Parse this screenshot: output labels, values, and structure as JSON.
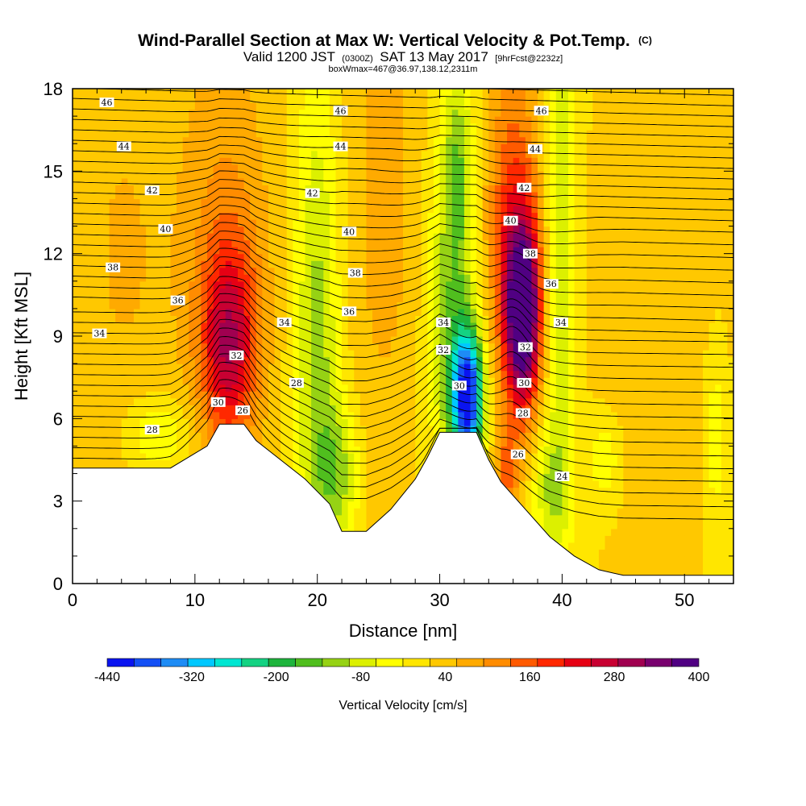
{
  "chart_data": {
    "type": "heatmap",
    "title": {
      "main": "Wind-Parallel Section at Max W: Vertical Velocity & Pot.Temp.",
      "mark": "(C)"
    },
    "subtitle": {
      "valid": "Valid 1200 JST",
      "utc": "(0300Z)",
      "date": "SAT 13 May 2017",
      "fcst": "[9hrFcst@2232z]"
    },
    "box_line": "boxWmax=467@36.97,138.12,2311m",
    "xlabel": "Distance [nm]",
    "ylabel": "Height [Kft MSL]",
    "xlim": [
      0,
      54
    ],
    "ylim": [
      0,
      18
    ],
    "x_ticks": [
      "0",
      "10",
      "20",
      "30",
      "40",
      "50"
    ],
    "y_ticks": [
      "0",
      "3",
      "6",
      "9",
      "12",
      "15",
      "18"
    ],
    "colorbar": {
      "title": "Vertical Velocity [cm/s]",
      "labels": [
        "-440",
        "-320",
        "-200",
        "-80",
        "40",
        "160",
        "280",
        "400"
      ],
      "colors": [
        "#0a14f0",
        "#1450f5",
        "#1e8cf5",
        "#00c8ff",
        "#00e6d2",
        "#14d282",
        "#1eb43c",
        "#50be1e",
        "#96d214",
        "#dcf000",
        "#ffff00",
        "#ffe600",
        "#ffc800",
        "#ffaa00",
        "#ff8c00",
        "#ff5a00",
        "#ff2800",
        "#e60014",
        "#c80032",
        "#a00050",
        "#78006e",
        "#500082"
      ]
    },
    "terrain_kft": [
      [
        0,
        4.2
      ],
      [
        8,
        4.2
      ],
      [
        11,
        5.0
      ],
      [
        12,
        5.8
      ],
      [
        14,
        5.8
      ],
      [
        15,
        5.2
      ],
      [
        17,
        4.5
      ],
      [
        19,
        3.8
      ],
      [
        21,
        2.9
      ],
      [
        22,
        1.9
      ],
      [
        24,
        1.9
      ],
      [
        26,
        2.7
      ],
      [
        28,
        3.8
      ],
      [
        29,
        4.6
      ],
      [
        30,
        5.5
      ],
      [
        33,
        5.5
      ],
      [
        34,
        4.5
      ],
      [
        35,
        3.7
      ],
      [
        37,
        2.7
      ],
      [
        39,
        1.7
      ],
      [
        41,
        1.0
      ],
      [
        43,
        0.5
      ],
      [
        45,
        0.3
      ],
      [
        54,
        0.3
      ]
    ],
    "w_features": [
      {
        "x": 12.8,
        "z": 8.7,
        "sx": 1.6,
        "sz": 2.5,
        "amp": 220
      },
      {
        "x": 12.5,
        "z": 12.5,
        "sx": 2.8,
        "sz": 6,
        "amp": 90
      },
      {
        "x": 20.0,
        "z": 8.5,
        "sx": 1.3,
        "sz": 7,
        "amp": -130
      },
      {
        "x": 21.8,
        "z": 4.0,
        "sx": 1.2,
        "sz": 1.8,
        "amp": -110
      },
      {
        "x": 7.0,
        "z": 5.5,
        "sx": 1.8,
        "sz": 0.9,
        "amp": -90
      },
      {
        "x": 25.5,
        "z": 14,
        "sx": 2.5,
        "sz": 8,
        "amp": 60
      },
      {
        "x": 32.3,
        "z": 6.8,
        "sx": 0.9,
        "sz": 1.7,
        "amp": -420
      },
      {
        "x": 31.0,
        "z": 10,
        "sx": 1.4,
        "sz": 4.5,
        "amp": -140
      },
      {
        "x": 31.5,
        "z": 15.5,
        "sx": 0.8,
        "sz": 2.5,
        "amp": -100
      },
      {
        "x": 36.8,
        "z": 9.8,
        "sx": 1.0,
        "sz": 2.3,
        "amp": 400
      },
      {
        "x": 36.0,
        "z": 13.0,
        "sx": 1.6,
        "sz": 4.5,
        "amp": 170
      },
      {
        "x": 35.5,
        "z": 4.0,
        "sx": 0.7,
        "sz": 1.2,
        "amp": 120
      },
      {
        "x": 39.8,
        "z": 12.5,
        "sx": 0.9,
        "sz": 8,
        "amp": -110
      },
      {
        "x": 39.0,
        "z": 3.5,
        "sx": 1.1,
        "sz": 1.5,
        "amp": -90
      },
      {
        "x": 43.5,
        "z": 4.5,
        "sx": 1.0,
        "sz": 1.2,
        "amp": -70
      },
      {
        "x": 48.0,
        "z": 10,
        "sx": 4.0,
        "sz": 7,
        "amp": 45
      },
      {
        "x": 4.0,
        "z": 12,
        "sx": 3.0,
        "sz": 6,
        "amp": 50
      },
      {
        "x": 52.5,
        "z": 5.5,
        "sx": 0.7,
        "sz": 2.5,
        "amp": -70
      }
    ],
    "theta_labels": [
      {
        "text": "46",
        "x": 2.8,
        "z": 17.5
      },
      {
        "text": "44",
        "x": 4.2,
        "z": 15.9
      },
      {
        "text": "42",
        "x": 6.5,
        "z": 14.3
      },
      {
        "text": "40",
        "x": 7.6,
        "z": 12.9
      },
      {
        "text": "38",
        "x": 3.3,
        "z": 11.5
      },
      {
        "text": "36",
        "x": 8.6,
        "z": 10.3
      },
      {
        "text": "34",
        "x": 2.2,
        "z": 9.1
      },
      {
        "text": "32",
        "x": 13.4,
        "z": 8.3
      },
      {
        "text": "30",
        "x": 11.9,
        "z": 6.6
      },
      {
        "text": "28",
        "x": 6.5,
        "z": 5.6
      },
      {
        "text": "26",
        "x": 13.9,
        "z": 6.3
      },
      {
        "text": "28",
        "x": 18.3,
        "z": 7.3
      },
      {
        "text": "34",
        "x": 17.3,
        "z": 9.5
      },
      {
        "text": "46",
        "x": 21.9,
        "z": 17.2
      },
      {
        "text": "44",
        "x": 21.9,
        "z": 15.9
      },
      {
        "text": "42",
        "x": 19.6,
        "z": 14.2
      },
      {
        "text": "40",
        "x": 22.6,
        "z": 12.8
      },
      {
        "text": "38",
        "x": 23.1,
        "z": 11.3
      },
      {
        "text": "36",
        "x": 22.6,
        "z": 9.9
      },
      {
        "text": "34",
        "x": 30.3,
        "z": 9.5
      },
      {
        "text": "32",
        "x": 30.3,
        "z": 8.5
      },
      {
        "text": "30",
        "x": 31.6,
        "z": 7.2
      },
      {
        "text": "46",
        "x": 38.3,
        "z": 17.2
      },
      {
        "text": "44",
        "x": 37.8,
        "z": 15.8
      },
      {
        "text": "42",
        "x": 36.9,
        "z": 14.4
      },
      {
        "text": "40",
        "x": 35.8,
        "z": 13.2
      },
      {
        "text": "38",
        "x": 37.4,
        "z": 12.0
      },
      {
        "text": "36",
        "x": 39.1,
        "z": 10.9
      },
      {
        "text": "34",
        "x": 39.9,
        "z": 9.5
      },
      {
        "text": "32",
        "x": 37.0,
        "z": 8.6
      },
      {
        "text": "30",
        "x": 36.9,
        "z": 7.3
      },
      {
        "text": "28",
        "x": 36.8,
        "z": 6.2
      },
      {
        "text": "26",
        "x": 36.4,
        "z": 4.7
      },
      {
        "text": "24",
        "x": 40.0,
        "z": 3.9
      }
    ]
  }
}
